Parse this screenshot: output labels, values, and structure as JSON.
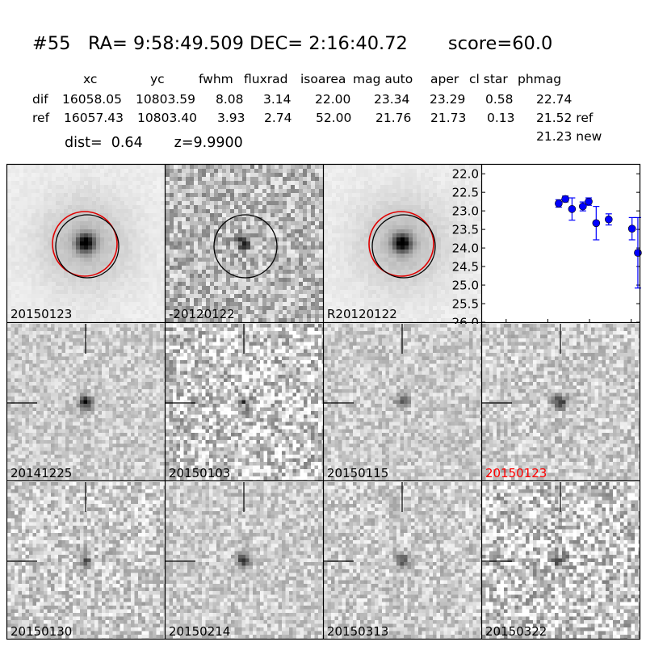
{
  "header": {
    "title": "#55   RA= 9:58:49.509 DEC= 2:16:40.72       score=60.0",
    "columns": [
      "xc",
      "yc",
      "fwhm",
      "fluxrad",
      "isoarea",
      "mag auto",
      "aper",
      "cl star",
      "phmag"
    ],
    "rows": [
      {
        "name": "dif",
        "values": [
          "16058.05",
          "10803.59",
          "8.08",
          "3.14",
          "22.00",
          "23.34",
          "23.29",
          "0.58",
          "22.74"
        ]
      },
      {
        "name": "ref",
        "values": [
          "16057.43",
          "10803.40",
          "3.93",
          "2.74",
          "52.00",
          "21.76",
          "21.73",
          "0.13",
          "21.52 ref"
        ]
      }
    ],
    "extra_phmag": "21.23 new",
    "dist_text": "dist=  0.64       z=9.9900"
  },
  "stamps": [
    {
      "label": "20150123",
      "mode": "smooth",
      "src": 1.0,
      "circle_black": true,
      "circle_red": true
    },
    {
      "label": "-20120122",
      "mode": "noisy",
      "src": 0.8,
      "circle_black": true,
      "circle_red": false
    },
    {
      "label": "R20120122",
      "mode": "smooth",
      "src": 1.0,
      "circle_black": true,
      "circle_red": true
    }
  ],
  "chart_data": {
    "type": "scatter",
    "xlim": [
      -125,
      60
    ],
    "ylim": [
      26.0,
      21.8
    ],
    "y_inverted": true,
    "xticks": [
      -100,
      -50,
      0,
      50
    ],
    "yticks": [
      "22.0",
      "22.5",
      "23.0",
      "23.5",
      "24.0",
      "24.5",
      "25.0",
      "25.5",
      "26.0"
    ],
    "color": "#0000ff",
    "points": [
      {
        "x": -37,
        "y": 22.8,
        "err": 0.1
      },
      {
        "x": -29,
        "y": 22.68,
        "err": 0.08
      },
      {
        "x": -21,
        "y": 22.95,
        "err": 0.3
      },
      {
        "x": -8,
        "y": 22.88,
        "err": 0.12
      },
      {
        "x": -1,
        "y": 22.75,
        "err": 0.1
      },
      {
        "x": 8,
        "y": 23.33,
        "err": 0.45
      },
      {
        "x": 23,
        "y": 23.23,
        "err": 0.15
      },
      {
        "x": 51,
        "y": 23.48,
        "err": 0.3
      },
      {
        "x": 58,
        "y": 24.13,
        "err": 0.95
      }
    ]
  },
  "epochs": [
    {
      "label": "20141225",
      "src": 1.0,
      "noise": 0.28,
      "highlight": false
    },
    {
      "label": "20150103",
      "src": 0.55,
      "noise": 0.6,
      "highlight": false
    },
    {
      "label": "20150115",
      "src": 0.55,
      "noise": 0.3,
      "highlight": false
    },
    {
      "label": "20150123",
      "src": 0.75,
      "noise": 0.35,
      "highlight": true
    },
    {
      "label": "20150130",
      "src": 0.5,
      "noise": 0.4,
      "highlight": false
    },
    {
      "label": "20150214",
      "src": 0.8,
      "noise": 0.32,
      "highlight": false
    },
    {
      "label": "20150313",
      "src": 0.5,
      "noise": 0.35,
      "highlight": false
    },
    {
      "label": "20150322",
      "src": 0.55,
      "noise": 0.6,
      "highlight": false
    }
  ]
}
